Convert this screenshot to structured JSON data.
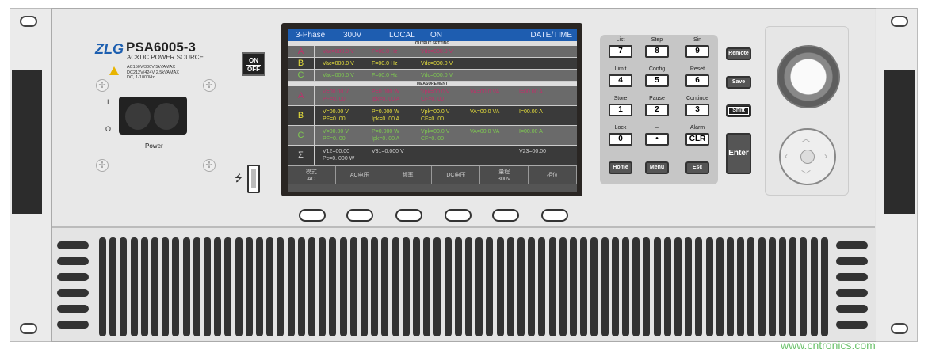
{
  "brand": {
    "logo": "ZLG",
    "model": "PSA6005-3",
    "subtitle": "AC&DC POWER SOURCE",
    "specs": [
      "AC150V/300V  5kVAMAX",
      "DC212V/424V  2.5kVAMAX",
      "DC, 1-1000Hz"
    ]
  },
  "power": {
    "switch_on": "ON",
    "switch_off": "OFF",
    "label": "Power",
    "mark_on": "I",
    "mark_off": "O"
  },
  "screen": {
    "header": {
      "mode": "3-Phase",
      "range": "300V",
      "control": "LOCAL",
      "output": "ON",
      "datetime": "DATE/TIME"
    },
    "output_setting_label": "OUTPUT SETTING",
    "output_rows": [
      {
        "phase": "A",
        "color": "#c0306a",
        "values": [
          "Vac=000.0 V",
          "F=00.0 Hz",
          "Vdc=000.0 V"
        ]
      },
      {
        "phase": "B",
        "color": "#e6df3c",
        "values": [
          "Vac=000.0 V",
          "F=00.0 Hz",
          "Vdc=000.0 V"
        ]
      },
      {
        "phase": "C",
        "color": "#7ec850",
        "values": [
          "Vac=000.0 V",
          "F=00.0 Hz",
          "Vdc=000.0 V"
        ]
      }
    ],
    "measurement_label": "MEASUREMENT",
    "measure_rows": [
      {
        "phase": "A",
        "color": "#c0306a",
        "values": [
          "V=00.00 V",
          "P=0.000 W",
          "Vpk=00.0 V",
          "VA=00.0 VA",
          "I=00.00 A",
          "PF=0. 00",
          "Ipk=0. 00 A",
          "CF=0. 00"
        ]
      },
      {
        "phase": "B",
        "color": "#e6df3c",
        "values": [
          "V=00.00 V",
          "P=0.000 W",
          "Vpk=00.0 V",
          "VA=00.0 VA",
          "I=00.00 A",
          "PF=0. 00",
          "Ipk=0. 00 A",
          "CF=0. 00"
        ]
      },
      {
        "phase": "C",
        "color": "#7ec850",
        "values": [
          "V=00.00 V",
          "P=0.000 W",
          "Vpk=00.0 V",
          "VA=00.0 VA",
          "I=00.00 A",
          "PF=0. 00",
          "Ipk=0. 00 A",
          "CF=0. 00"
        ]
      },
      {
        "phase": "Σ",
        "color": "#cccccc",
        "values": [
          "V12=00.00",
          "V31=0.000 V",
          "",
          "",
          "V23=00.00",
          "Pc=0. 000 W",
          "",
          ""
        ]
      }
    ],
    "softkeys": [
      [
        "模式",
        "AC"
      ],
      [
        "AC电压"
      ],
      [
        "频率"
      ],
      [
        "DC电压"
      ],
      [
        "量程",
        "300V"
      ],
      [
        "相位"
      ]
    ]
  },
  "keypad": {
    "keys": [
      {
        "label": "List",
        "key": "7"
      },
      {
        "label": "Step",
        "key": "8"
      },
      {
        "label": "Sin",
        "key": "9"
      },
      {
        "label": "Limit",
        "key": "4"
      },
      {
        "label": "Config",
        "key": "5"
      },
      {
        "label": "Reset",
        "key": "6"
      },
      {
        "label": "Store",
        "key": "1"
      },
      {
        "label": "Pause",
        "key": "2"
      },
      {
        "label": "Continue",
        "key": "3"
      },
      {
        "label": "Lock",
        "key": "0"
      },
      {
        "label": "–",
        "key": "•"
      },
      {
        "label": "Alarm",
        "key": "CLR"
      }
    ],
    "bottom": [
      "Home",
      "Menu",
      "Esc"
    ],
    "side": [
      "Remote",
      "Save",
      "Shift"
    ],
    "enter": "Enter"
  },
  "watermark": "www.cntronics.com"
}
